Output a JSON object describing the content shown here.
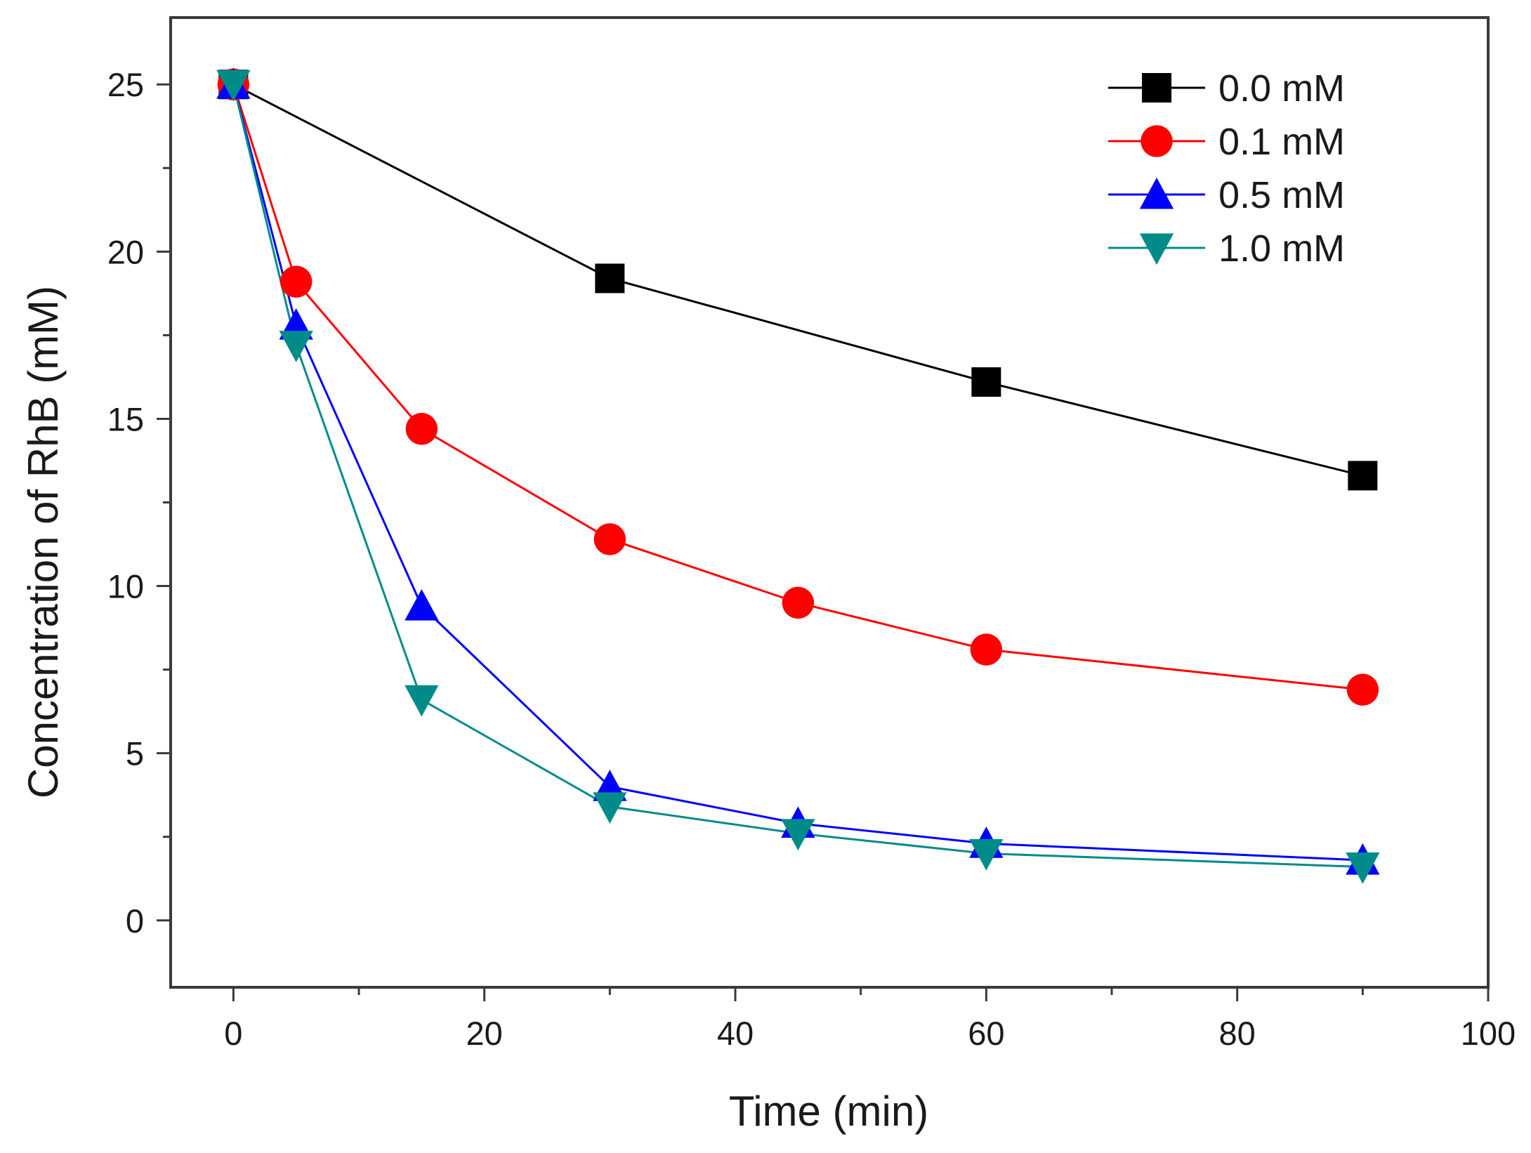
{
  "chart_data": {
    "type": "line",
    "title": "",
    "xlabel": "Time (min)",
    "ylabel": "Concentration of RhB (mM)",
    "xlim": [
      -5,
      100
    ],
    "ylim": [
      -2,
      27
    ],
    "xticks": [
      0,
      20,
      40,
      60,
      80,
      100
    ],
    "xtick_labels": [
      "0",
      "20",
      "40",
      "60",
      "80",
      "100"
    ],
    "yticks": [
      0,
      5,
      10,
      15,
      20,
      25
    ],
    "ytick_labels": [
      "0",
      "5",
      "10",
      "15",
      "20",
      "25"
    ],
    "grid": false,
    "legend_position": "top-right",
    "series": [
      {
        "name": "0.0 mM",
        "label": "0.0 mM",
        "color": "#000000",
        "marker": "square",
        "x": [
          0,
          30,
          60,
          90
        ],
        "y": [
          25,
          19.2,
          16.1,
          13.3
        ]
      },
      {
        "name": "0.1 mM",
        "label": "0.1 mM",
        "color": "#ff0000",
        "marker": "circle",
        "x": [
          0,
          5,
          15,
          30,
          45,
          60,
          90
        ],
        "y": [
          25,
          19.1,
          14.7,
          11.4,
          9.5,
          8.1,
          6.9
        ]
      },
      {
        "name": "0.5 mM",
        "label": "0.5 mM",
        "color": "#0000ff",
        "marker": "triangle-up",
        "x": [
          0,
          5,
          15,
          30,
          45,
          60,
          90
        ],
        "y": [
          25,
          17.8,
          9.4,
          4.0,
          2.9,
          2.3,
          1.8
        ]
      },
      {
        "name": "1.0 mM",
        "label": "1.0 mM",
        "color": "#008b8b",
        "marker": "triangle-down",
        "x": [
          0,
          5,
          15,
          30,
          45,
          60,
          90
        ],
        "y": [
          25,
          17.2,
          6.6,
          3.4,
          2.6,
          2.0,
          1.6
        ]
      }
    ]
  }
}
